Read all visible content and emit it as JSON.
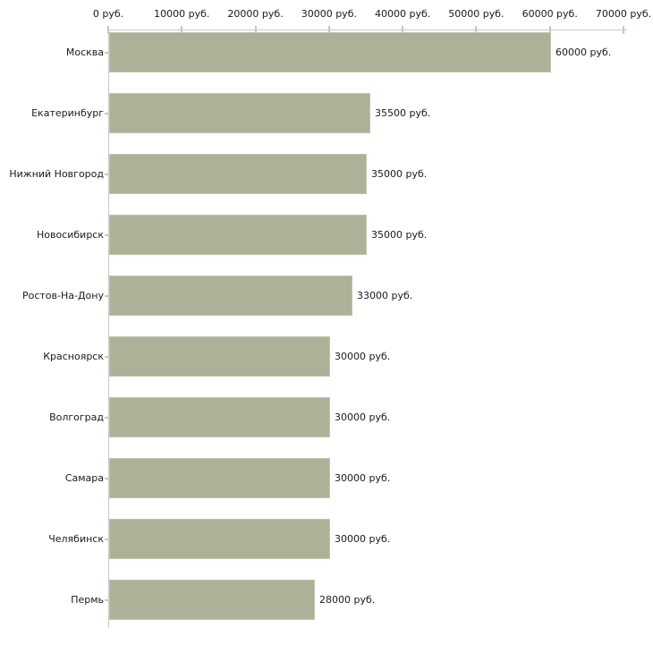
{
  "chart_data": {
    "type": "bar",
    "orientation": "horizontal",
    "title": "",
    "xlabel": "",
    "ylabel": "",
    "grid": false,
    "legend": false,
    "axis_position": "top",
    "currency_suffix": " руб.",
    "categories": [
      "Москва",
      "Екатеринбург",
      "Нижний Новгород",
      "Новосибирск",
      "Ростов-На-Дону",
      "Красноярск",
      "Волгоград",
      "Самара",
      "Челябинск",
      "Пермь"
    ],
    "values": [
      60000,
      35500,
      35000,
      35000,
      33000,
      30000,
      30000,
      30000,
      30000,
      28000
    ],
    "bar_labels": [
      "60000 руб.",
      "35500 руб.",
      "35000 руб.",
      "35000 руб.",
      "33000 руб.",
      "30000 руб.",
      "30000 руб.",
      "30000 руб.",
      "30000 руб.",
      "28000 руб."
    ],
    "x_ticks": [
      0,
      10000,
      20000,
      30000,
      40000,
      50000,
      60000,
      70000
    ],
    "x_tick_labels": [
      "0 руб.",
      "10000 руб.",
      "20000 руб.",
      "30000 руб.",
      "40000 руб.",
      "50000 руб.",
      "60000 руб.",
      "70000 руб."
    ],
    "xlim": [
      0,
      70000
    ],
    "colors": {
      "background": "#ffffff",
      "bar_fill": "#acb197",
      "bar_border": "#c2c5b0",
      "axis_line": "#c9c9c9",
      "tick_mark": "#c9cbaa",
      "text": "#1a1a1a"
    }
  }
}
